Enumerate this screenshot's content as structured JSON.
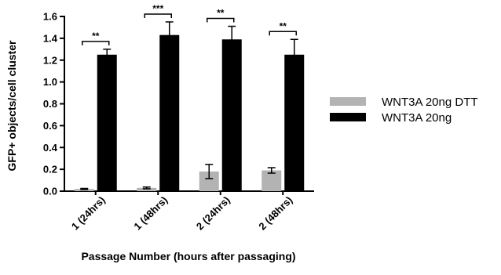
{
  "chart_data": {
    "type": "bar",
    "categories": [
      "1 (24hrs)",
      "1 (48hrs)",
      "2 (24hrs)",
      "2 (48hrs)"
    ],
    "xlabel": "Passage Number (hours after passaging)",
    "ylabel": "GFP+ objects/cell cluster",
    "ylim": [
      0,
      1.6
    ],
    "yticks": [
      "0.0",
      "0.2",
      "0.4",
      "0.6",
      "0.8",
      "1.0",
      "1.2",
      "1.4",
      "1.6"
    ],
    "legend_position": "right",
    "series": [
      {
        "name": "WNT3A 20ng DTT",
        "color": "#b3b3b3",
        "values": [
          0.02,
          0.03,
          0.18,
          0.19
        ],
        "errors": [
          0.005,
          0.008,
          0.065,
          0.025
        ]
      },
      {
        "name": "WNT3A 20ng",
        "color": "#000000",
        "values": [
          1.25,
          1.43,
          1.39,
          1.25
        ],
        "errors": [
          0.05,
          0.12,
          0.12,
          0.14
        ]
      }
    ],
    "significance": [
      "**",
      "***",
      "**",
      "**"
    ]
  }
}
